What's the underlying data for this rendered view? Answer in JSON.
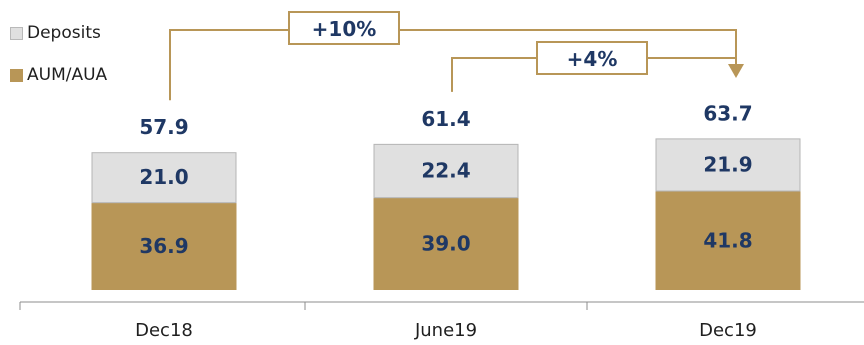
{
  "chart_data": {
    "type": "bar",
    "stacked": true,
    "categories": [
      "Dec18",
      "June19",
      "Dec19"
    ],
    "series": [
      {
        "name": "AUM/AUA",
        "values": [
          36.9,
          39.0,
          41.8
        ]
      },
      {
        "name": "Deposits",
        "values": [
          21.0,
          22.4,
          21.9
        ]
      }
    ],
    "totals": [
      57.9,
      61.4,
      63.7
    ],
    "value_labels": {
      "AUM/AUA": [
        "36.9",
        "39.0",
        "41.8"
      ],
      "Deposits": [
        "21.0",
        "22.4",
        "21.9"
      ],
      "totals": [
        "57.9",
        "61.4",
        "63.7"
      ]
    },
    "annotations": [
      {
        "label": "+10%",
        "from": "Dec18",
        "to": "Dec19"
      },
      {
        "label": "+4%",
        "from": "June19",
        "to": "Dec19"
      }
    ],
    "legend": {
      "position": "top-left",
      "entries": [
        "Deposits",
        "AUM/AUA"
      ]
    },
    "colors": {
      "AUM/AUA": "#b89657",
      "Deposits": "#e0e0e0",
      "label": "#1f3864",
      "connector": "#b89657"
    },
    "title": "",
    "xlabel": "",
    "ylabel": "",
    "grid": false
  }
}
